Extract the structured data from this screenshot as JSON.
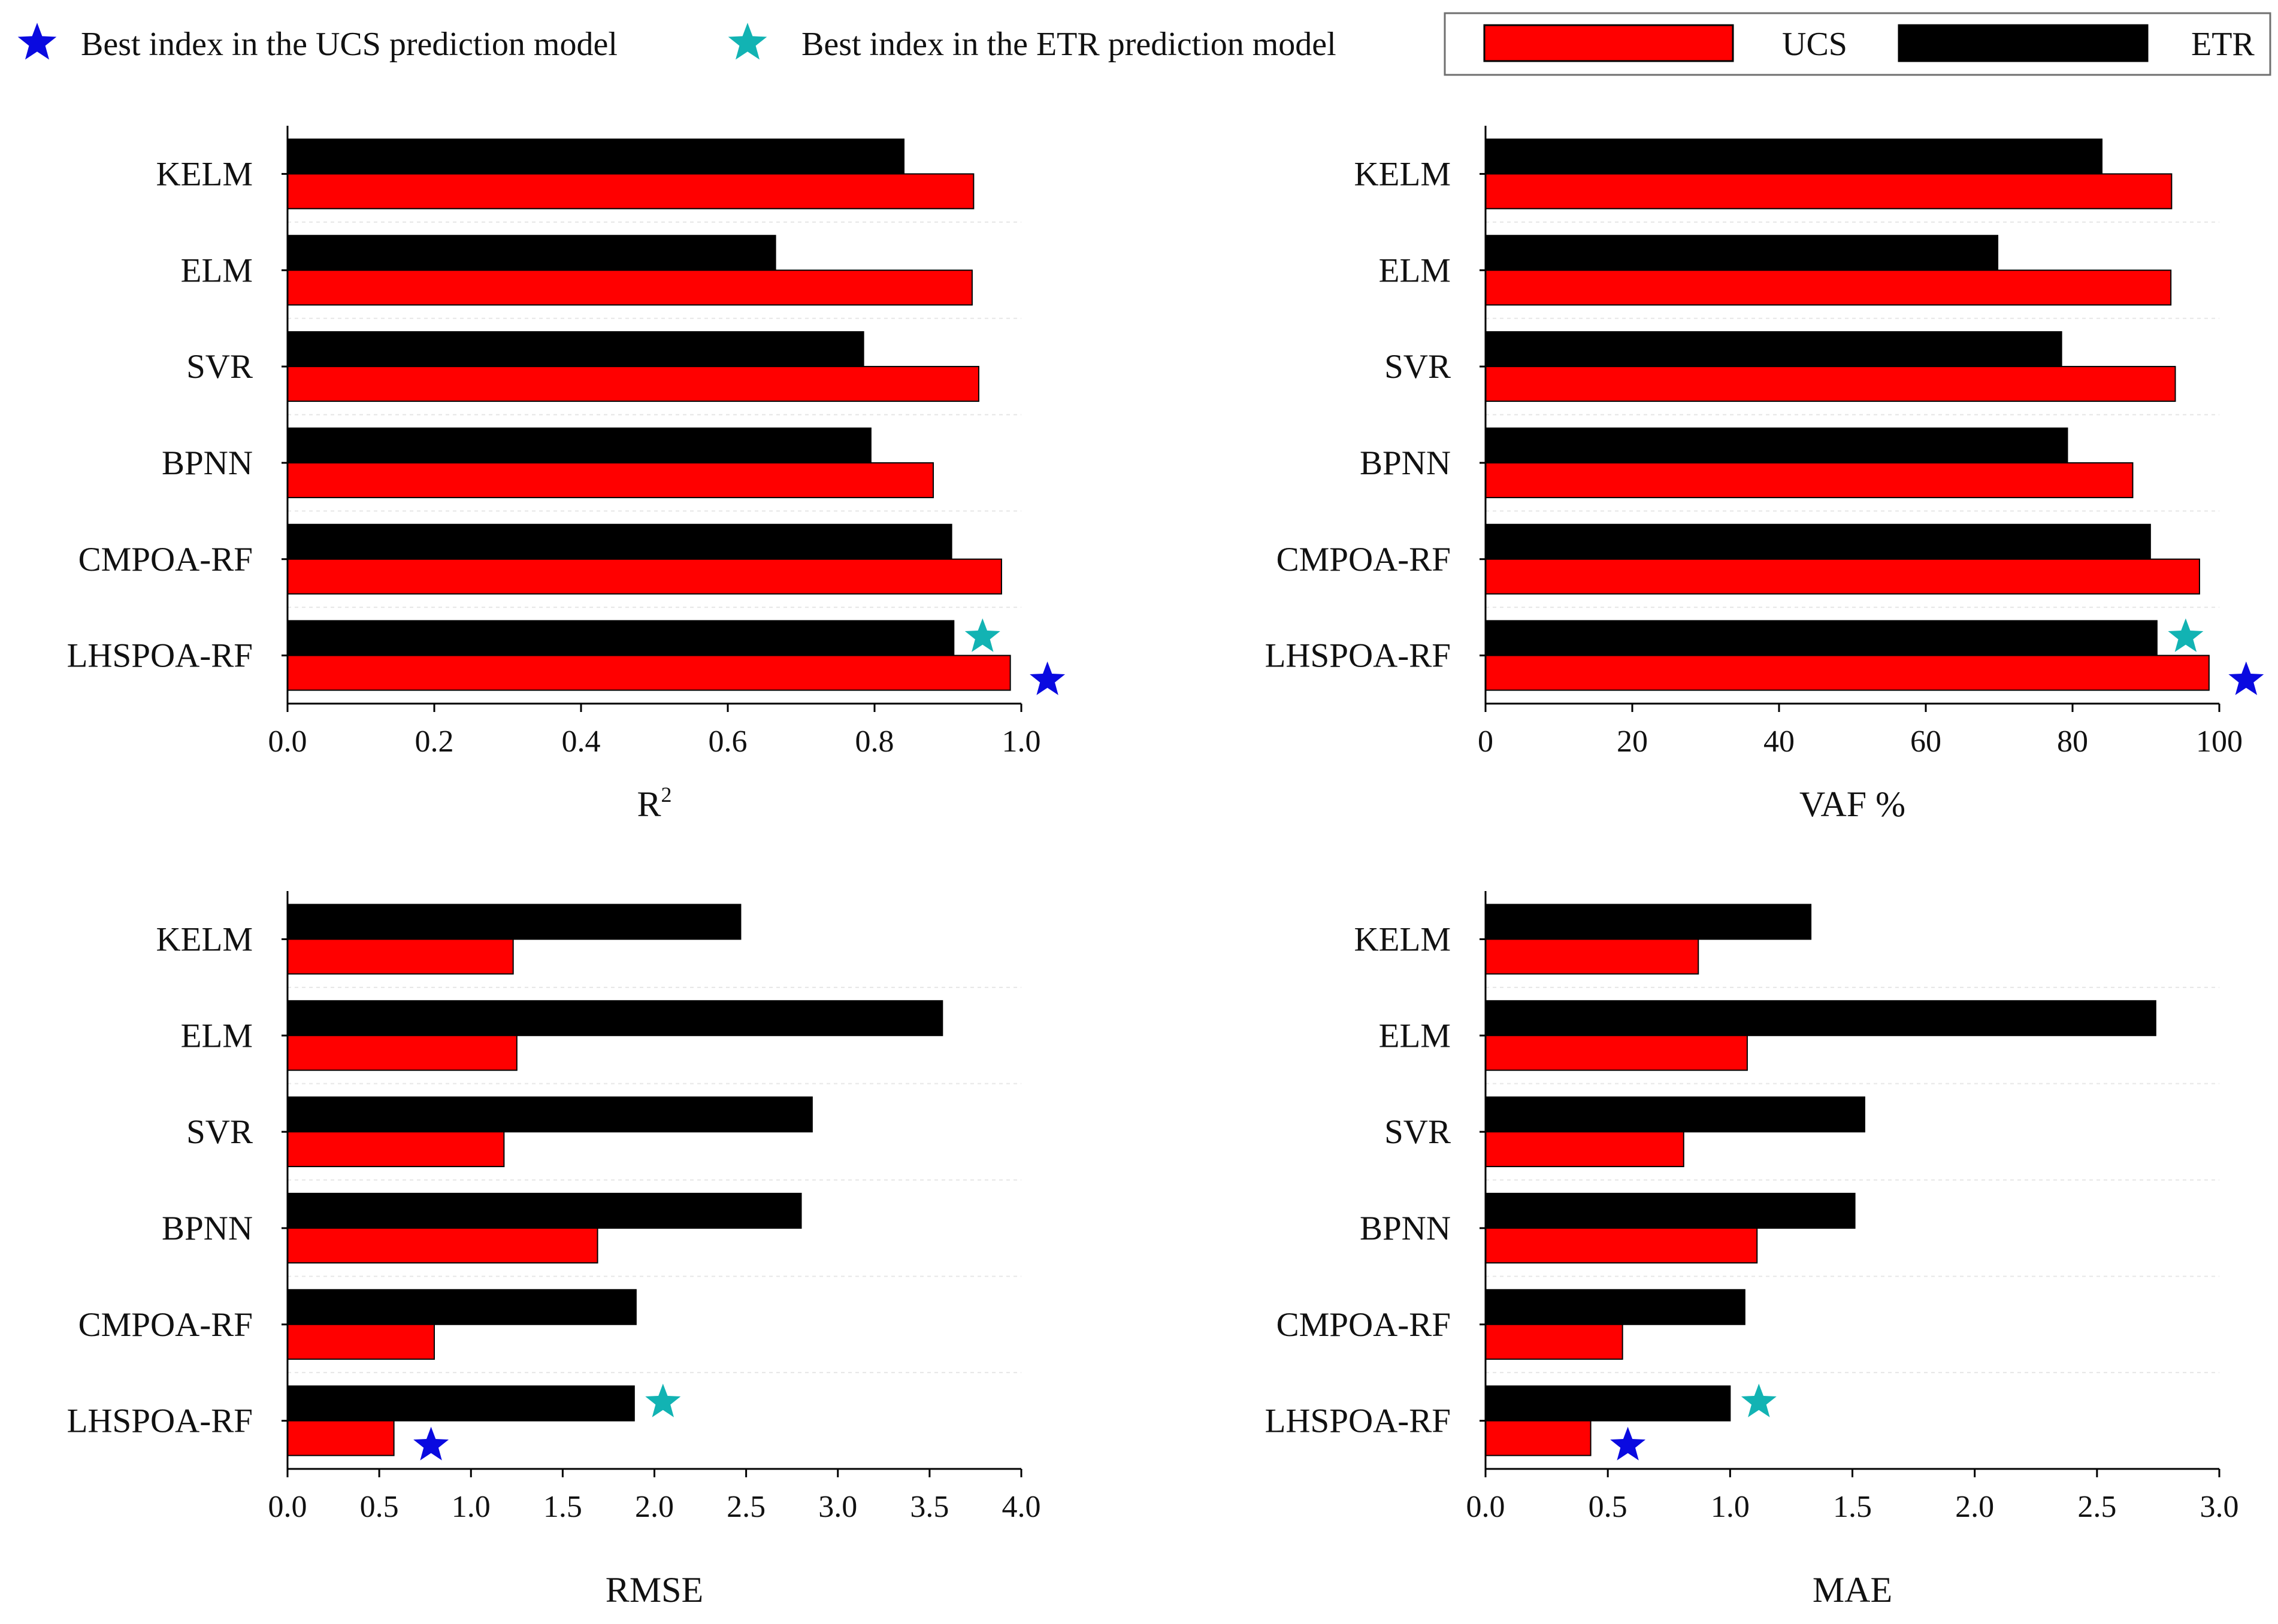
{
  "legend": {
    "ucs_star_label": "Best index in the UCS prediction model",
    "etr_star_label": "Best index in the ETR prediction model",
    "ucs_bar_label": "UCS",
    "etr_bar_label": "ETR"
  },
  "colors": {
    "ucs": "#ff0000",
    "etr": "#000000",
    "ucs_star": "#0a0ae0",
    "etr_star": "#12b3b3"
  },
  "chart_data": [
    {
      "type": "bar",
      "orientation": "horizontal",
      "xlabel": "R",
      "xlabel_sup": "2",
      "xlim": [
        0,
        1.0
      ],
      "ticks": [
        "0.0",
        "0.2",
        "0.4",
        "0.6",
        "0.8",
        "1.0"
      ],
      "categories": [
        "KELM",
        "ELM",
        "SVR",
        "BPNN",
        "CMPOA-RF",
        "LHSPOA-RF"
      ],
      "series": [
        {
          "name": "ETR",
          "values": [
            0.84,
            0.665,
            0.785,
            0.795,
            0.905,
            0.908
          ]
        },
        {
          "name": "UCS",
          "values": [
            0.935,
            0.933,
            0.942,
            0.88,
            0.973,
            0.985
          ]
        }
      ],
      "best": {
        "category": "LHSPOA-RF",
        "ucs": true,
        "etr": true
      }
    },
    {
      "type": "bar",
      "orientation": "horizontal",
      "xlabel": "VAF %",
      "xlim": [
        0,
        100
      ],
      "ticks": [
        "0",
        "20",
        "40",
        "60",
        "80",
        "100"
      ],
      "categories": [
        "KELM",
        "ELM",
        "SVR",
        "BPNN",
        "CMPOA-RF",
        "LHSPOA-RF"
      ],
      "series": [
        {
          "name": "ETR",
          "values": [
            84.0,
            69.8,
            78.5,
            79.3,
            90.6,
            91.5
          ]
        },
        {
          "name": "UCS",
          "values": [
            93.5,
            93.4,
            94.0,
            88.2,
            97.3,
            98.6
          ]
        }
      ],
      "best": {
        "category": "LHSPOA-RF",
        "ucs": true,
        "etr": true
      }
    },
    {
      "type": "bar",
      "orientation": "horizontal",
      "xlabel": "RMSE",
      "xlim": [
        0,
        4.0
      ],
      "ticks": [
        "0.0",
        "0.5",
        "1.0",
        "1.5",
        "2.0",
        "2.5",
        "3.0",
        "3.5",
        "4.0"
      ],
      "categories": [
        "KELM",
        "ELM",
        "SVR",
        "BPNN",
        "CMPOA-RF",
        "LHSPOA-RF"
      ],
      "series": [
        {
          "name": "ETR",
          "values": [
            2.47,
            3.57,
            2.86,
            2.8,
            1.9,
            1.89
          ]
        },
        {
          "name": "UCS",
          "values": [
            1.23,
            1.25,
            1.18,
            1.69,
            0.8,
            0.58
          ]
        }
      ],
      "best": {
        "category": "LHSPOA-RF",
        "ucs": true,
        "etr": true
      }
    },
    {
      "type": "bar",
      "orientation": "horizontal",
      "xlabel": "MAE",
      "xlim": [
        0,
        3.0
      ],
      "ticks": [
        "0.0",
        "0.5",
        "1.0",
        "1.5",
        "2.0",
        "2.5",
        "3.0"
      ],
      "categories": [
        "KELM",
        "ELM",
        "SVR",
        "BPNN",
        "CMPOA-RF",
        "LHSPOA-RF"
      ],
      "series": [
        {
          "name": "ETR",
          "values": [
            1.33,
            2.74,
            1.55,
            1.51,
            1.06,
            1.0
          ]
        },
        {
          "name": "UCS",
          "values": [
            0.87,
            1.07,
            0.81,
            1.11,
            0.56,
            0.43
          ]
        }
      ],
      "best": {
        "category": "LHSPOA-RF",
        "ucs": true,
        "etr": true
      }
    }
  ]
}
